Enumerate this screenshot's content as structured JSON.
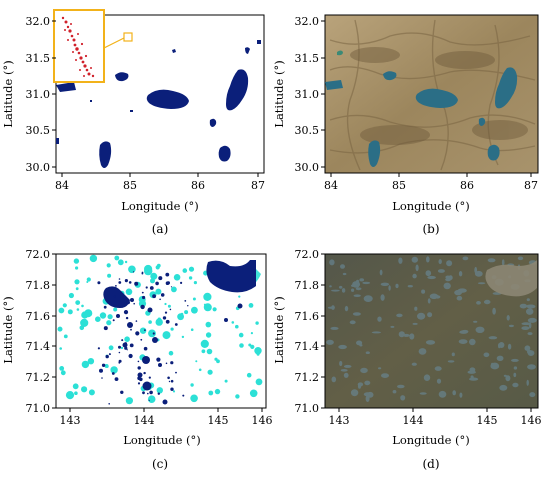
{
  "panels": [
    {
      "caption": "(a)",
      "kind": "lake-mask",
      "xlabel": "Longitude (°)",
      "ylabel": "Latitude (°)",
      "xticks": [
        "84",
        "85",
        "86",
        "87"
      ],
      "yticks": [
        "32.0",
        "31.5",
        "31.0",
        "30.5",
        "30.0"
      ],
      "inset": true
    },
    {
      "caption": "(b)",
      "kind": "satellite-desert",
      "xlabel": "Longitude (°)",
      "ylabel": "Latitude (°)",
      "xticks": [
        "84",
        "85",
        "86",
        "87"
      ],
      "yticks": [
        "32.0",
        "31.5",
        "31.0",
        "30.5",
        "30.0"
      ]
    },
    {
      "caption": "(c)",
      "kind": "lake-mask-thermokarst",
      "xlabel": "Longitude (°)",
      "ylabel": "Latitude (°)",
      "xticks": [
        "143",
        "144",
        "145",
        "146"
      ],
      "yticks": [
        "72.0",
        "71.8",
        "71.6",
        "71.4",
        "71.2",
        "71.0"
      ]
    },
    {
      "caption": "(d)",
      "kind": "satellite-tundra",
      "xlabel": "Longitude (°)",
      "ylabel": "Latitude (°)",
      "xticks": [
        "143",
        "144",
        "145",
        "146"
      ],
      "yticks": [
        "72.0",
        "71.8",
        "71.6",
        "71.4",
        "71.2",
        "71.0"
      ]
    }
  ],
  "colors": {
    "lake_dark": "#0b1f7a",
    "lake_cyan": "#2ce0d6",
    "inset_frame": "#f2b21a",
    "inset_dots": "#d0202a",
    "desert": "#a8936c",
    "tundra": "#5c5e49",
    "water_sat": "#2b6e86"
  }
}
